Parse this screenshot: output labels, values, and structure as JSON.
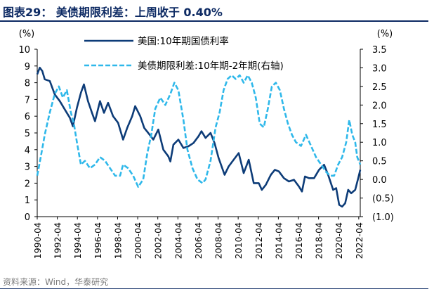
{
  "header": {
    "title": "图表29：  美债期限利差：上周收于 0.40%"
  },
  "source": "资料来源：Wind，华泰研究",
  "colors": {
    "primary": "#0d3c78",
    "secondary": "#2fb8ea",
    "axis": "#000000"
  },
  "chart_data": {
    "type": "line",
    "title": "美债期限利差：上周收于 0.40%",
    "y_left": {
      "label": "(%)",
      "lim": [
        0,
        10
      ],
      "ticks": [
        "0",
        "1",
        "2",
        "3",
        "4",
        "5",
        "6",
        "7",
        "8",
        "9",
        "10"
      ]
    },
    "y_right": {
      "label": "(%)",
      "lim": [
        -1.0,
        3.5
      ],
      "ticks": [
        "(1.0)",
        "(0.5)",
        "0.0",
        "0.5",
        "1.0",
        "1.5",
        "2.0",
        "2.5",
        "3.0",
        "3.5"
      ]
    },
    "x_lim": [
      1990.25,
      2022.4
    ],
    "x_ticks": [
      "1990-04",
      "1992-04",
      "1994-04",
      "1996-04",
      "1998-04",
      "2000-04",
      "2002-04",
      "2004-04",
      "2006-04",
      "2008-04",
      "2010-04",
      "2012-04",
      "2014-04",
      "2016-04",
      "2018-04",
      "2020-04",
      "2022-04"
    ],
    "series": [
      {
        "name": "美国:10年期国债利率",
        "axis": "left",
        "style": "solid",
        "x": [
          1990.25,
          1990.5,
          1990.75,
          1991.0,
          1991.5,
          1992.0,
          1992.5,
          1993.0,
          1993.5,
          1993.8,
          1994.2,
          1994.6,
          1994.9,
          1995.3,
          1995.7,
          1996.0,
          1996.5,
          1996.9,
          1997.3,
          1997.8,
          1998.3,
          1998.8,
          1999.2,
          1999.7,
          2000.0,
          2000.5,
          2000.9,
          2001.3,
          2001.8,
          2002.3,
          2002.8,
          2003.3,
          2003.5,
          2003.8,
          2004.3,
          2004.8,
          2005.3,
          2005.8,
          2006.3,
          2006.6,
          2007.0,
          2007.5,
          2007.9,
          2008.3,
          2008.9,
          2009.3,
          2009.8,
          2010.3,
          2010.8,
          2011.3,
          2011.8,
          2012.3,
          2012.6,
          2013.0,
          2013.5,
          2013.9,
          2014.3,
          2014.8,
          2015.3,
          2015.8,
          2016.3,
          2016.6,
          2016.9,
          2017.3,
          2017.8,
          2018.3,
          2018.8,
          2019.2,
          2019.7,
          2020.0,
          2020.3,
          2020.6,
          2020.9,
          2021.2,
          2021.5,
          2021.9,
          2022.2,
          2022.4
        ],
        "values": [
          8.5,
          8.9,
          8.7,
          8.2,
          8.1,
          7.3,
          6.9,
          6.4,
          5.9,
          5.4,
          6.5,
          7.4,
          7.9,
          6.9,
          6.2,
          5.7,
          6.9,
          6.2,
          6.8,
          6.0,
          5.6,
          4.6,
          5.3,
          6.0,
          6.6,
          6.0,
          5.3,
          5.0,
          4.6,
          5.2,
          4.0,
          3.6,
          3.3,
          4.3,
          4.6,
          4.1,
          4.2,
          4.4,
          4.8,
          5.1,
          4.7,
          5.0,
          4.4,
          3.5,
          2.5,
          3.0,
          3.4,
          3.8,
          2.6,
          3.4,
          2.0,
          2.0,
          1.6,
          1.9,
          2.5,
          2.8,
          2.7,
          2.3,
          2.1,
          2.2,
          1.8,
          1.5,
          2.4,
          2.3,
          2.3,
          2.8,
          3.1,
          2.5,
          1.6,
          1.7,
          0.7,
          0.6,
          0.8,
          1.6,
          1.4,
          1.6,
          2.3,
          2.8
        ]
      },
      {
        "name": "美债期限利差:10年期-2年期(右轴)",
        "axis": "right",
        "style": "dashed",
        "x": [
          1990.25,
          1990.6,
          1991.0,
          1991.5,
          1992.0,
          1992.4,
          1992.8,
          1993.2,
          1993.6,
          1993.9,
          1994.2,
          1994.6,
          1995.0,
          1995.5,
          1996.0,
          1996.5,
          1997.0,
          1997.5,
          1998.0,
          1998.5,
          1998.8,
          1999.3,
          1999.8,
          2000.3,
          2000.8,
          2001.2,
          2001.6,
          2002.0,
          2002.5,
          2003.0,
          2003.5,
          2003.9,
          2004.3,
          2004.8,
          2005.2,
          2005.7,
          2006.2,
          2006.7,
          2007.0,
          2007.5,
          2008.0,
          2008.4,
          2008.8,
          2009.2,
          2009.6,
          2010.0,
          2010.4,
          2010.8,
          2011.2,
          2011.6,
          2012.0,
          2012.4,
          2012.8,
          2013.2,
          2013.6,
          2014.0,
          2014.4,
          2014.8,
          2015.2,
          2015.6,
          2016.0,
          2016.5,
          2017.0,
          2017.5,
          2018.0,
          2018.5,
          2019.0,
          2019.4,
          2019.8,
          2020.2,
          2020.6,
          2021.0,
          2021.3,
          2021.6,
          2021.9,
          2022.1,
          2022.4
        ],
        "values": [
          0.1,
          0.6,
          1.2,
          1.8,
          2.3,
          2.5,
          2.2,
          2.4,
          1.8,
          1.5,
          1.0,
          0.4,
          0.5,
          0.3,
          0.4,
          0.6,
          0.5,
          0.3,
          0.1,
          0.1,
          0.4,
          0.3,
          0.1,
          -0.2,
          0.0,
          0.7,
          1.2,
          1.9,
          2.2,
          2.0,
          2.3,
          2.6,
          2.4,
          1.6,
          0.8,
          0.3,
          0.0,
          -0.1,
          0.0,
          0.5,
          1.4,
          1.8,
          2.4,
          2.7,
          2.8,
          2.7,
          2.8,
          2.6,
          2.8,
          2.6,
          2.2,
          1.5,
          1.4,
          1.9,
          2.5,
          2.6,
          2.4,
          1.9,
          1.5,
          1.2,
          1.0,
          0.9,
          1.2,
          0.9,
          0.6,
          0.4,
          0.2,
          0.1,
          0.1,
          0.4,
          0.6,
          1.0,
          1.6,
          1.2,
          1.0,
          0.6,
          0.4
        ]
      }
    ]
  }
}
